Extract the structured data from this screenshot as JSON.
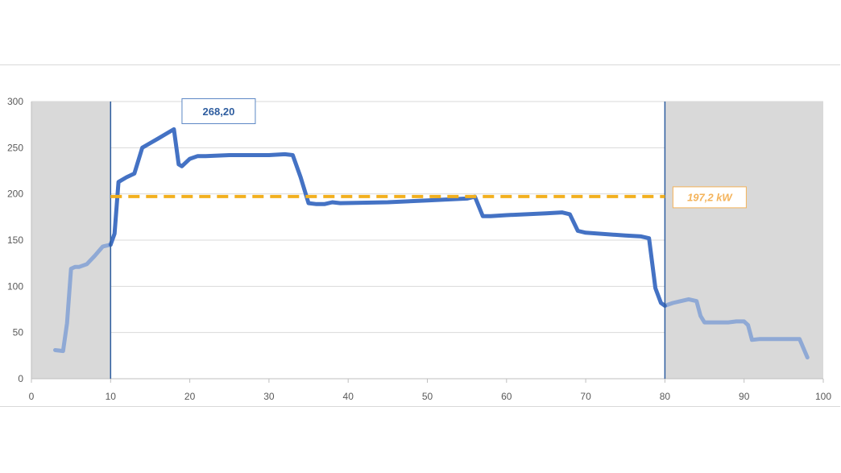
{
  "chart_data": {
    "type": "line",
    "xlim": [
      0,
      100
    ],
    "ylim": [
      0,
      300
    ],
    "x_ticks": [
      0,
      10,
      20,
      30,
      40,
      50,
      60,
      70,
      80,
      90,
      100
    ],
    "y_ticks": [
      0,
      50,
      100,
      150,
      200,
      250,
      300
    ],
    "grid": "horizontal",
    "highlight_range": [
      10,
      80
    ],
    "series": [
      {
        "x": [
          3,
          4,
          4.5,
          5,
          5.5,
          6,
          7,
          8,
          9,
          10,
          10.5,
          11,
          12,
          13,
          14,
          15,
          16,
          17,
          18,
          18.6,
          19,
          20,
          21,
          22,
          25,
          30,
          32,
          33,
          34,
          35,
          36,
          37,
          38,
          39,
          45,
          50,
          55,
          56,
          57,
          58,
          60,
          65,
          67,
          68,
          69,
          70,
          75,
          77,
          78,
          78.8,
          79.5,
          80,
          81,
          82,
          83,
          84,
          84.5,
          85,
          86,
          88,
          89,
          90,
          90.5,
          91,
          92,
          95,
          96,
          97,
          98
        ],
        "y": [
          31,
          30,
          60,
          119,
          121,
          121,
          124,
          133,
          143,
          145,
          157,
          213,
          218,
          222,
          250,
          255,
          260,
          265,
          270,
          232,
          230,
          238,
          241,
          241,
          242,
          242,
          243,
          242,
          218,
          190,
          189,
          189,
          191,
          190,
          191,
          193,
          195,
          197,
          176,
          176,
          177,
          179,
          180,
          178,
          160,
          158,
          155,
          154,
          152,
          98,
          82,
          79,
          82,
          84,
          86,
          84,
          68,
          61,
          61,
          61,
          62,
          62,
          58,
          42,
          43,
          43,
          43,
          43,
          23
        ]
      }
    ],
    "reference_line": {
      "y": 197.2,
      "x_range": [
        10,
        80
      ],
      "color": "#f2b01e"
    },
    "annotations": [
      {
        "x": 18,
        "y": 268.2,
        "text": "268,20"
      },
      {
        "x": 80,
        "y": 197.2,
        "text": "197,2 kW"
      }
    ],
    "colors": {
      "main_line": "#4472c4",
      "faded_line": "#8fa9d5",
      "shade": "#d9d9d9",
      "gridline": "#d9d9d9",
      "marker_line": "#2e5d9f"
    }
  }
}
